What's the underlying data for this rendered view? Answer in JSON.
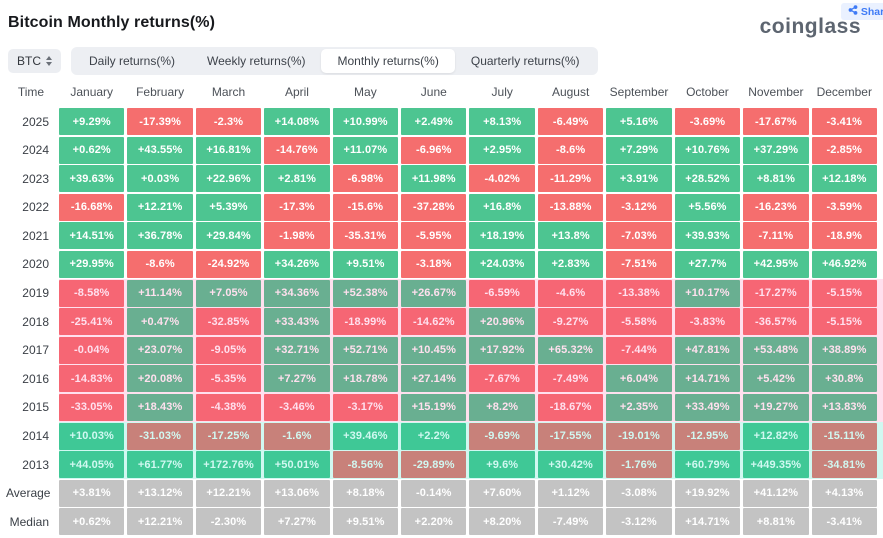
{
  "header": {
    "title": "Bitcoin Monthly returns(%)",
    "share_label": "Share",
    "logo": "coinglass"
  },
  "controls": {
    "symbol": "BTC",
    "tabs": [
      {
        "label": "Daily returns(%)",
        "active": false
      },
      {
        "label": "Weekly returns(%)",
        "active": false
      },
      {
        "label": "Monthly returns(%)",
        "active": true
      },
      {
        "label": "Quarterly returns(%)",
        "active": false
      }
    ]
  },
  "colors": {
    "positive": "#4dc591",
    "negative": "#f56e6e",
    "summary": "#c3c3c3"
  },
  "chart_data": {
    "type": "heatmap",
    "title": "Bitcoin Monthly returns(%)",
    "time_label": "Time",
    "months": [
      "January",
      "February",
      "March",
      "April",
      "May",
      "June",
      "July",
      "August",
      "September",
      "October",
      "November",
      "December"
    ],
    "rows": [
      {
        "label": "2025",
        "band": null,
        "type": "year",
        "values": [
          "+9.29%",
          "-17.39%",
          "-2.3%",
          "+14.08%",
          "+10.99%",
          "+2.49%",
          "+8.13%",
          "-6.49%",
          "+5.16%",
          "-3.69%",
          "-17.67%",
          "-3.41%"
        ]
      },
      {
        "label": "2024",
        "band": null,
        "type": "year",
        "values": [
          "+0.62%",
          "+43.55%",
          "+16.81%",
          "-14.76%",
          "+11.07%",
          "-6.96%",
          "+2.95%",
          "-8.6%",
          "+7.29%",
          "+10.76%",
          "+37.29%",
          "-2.85%"
        ]
      },
      {
        "label": "2023",
        "band": null,
        "type": "year",
        "values": [
          "+39.63%",
          "+0.03%",
          "+22.96%",
          "+2.81%",
          "-6.98%",
          "+11.98%",
          "-4.02%",
          "-11.29%",
          "+3.91%",
          "+28.52%",
          "+8.81%",
          "+12.18%"
        ]
      },
      {
        "label": "2022",
        "band": null,
        "type": "year",
        "values": [
          "-16.68%",
          "+12.21%",
          "+5.39%",
          "-17.3%",
          "-15.6%",
          "-37.28%",
          "+16.8%",
          "-13.88%",
          "-3.12%",
          "+5.56%",
          "-16.23%",
          "-3.59%"
        ]
      },
      {
        "label": "2021",
        "band": null,
        "type": "year",
        "values": [
          "+14.51%",
          "+36.78%",
          "+29.84%",
          "-1.98%",
          "-35.31%",
          "-5.95%",
          "+18.19%",
          "+13.8%",
          "-7.03%",
          "+39.93%",
          "-7.11%",
          "-18.9%"
        ]
      },
      {
        "label": "2020",
        "band": null,
        "type": "year",
        "values": [
          "+29.95%",
          "-8.6%",
          "-24.92%",
          "+34.26%",
          "+9.51%",
          "-3.18%",
          "+24.03%",
          "+2.83%",
          "-7.51%",
          "+27.7%",
          "+42.95%",
          "+46.92%"
        ]
      },
      {
        "label": "2019",
        "band": "pink",
        "type": "year",
        "values": [
          "-8.58%",
          "+11.14%",
          "+7.05%",
          "+34.36%",
          "+52.38%",
          "+26.67%",
          "-6.59%",
          "-4.6%",
          "-13.38%",
          "+10.17%",
          "-17.27%",
          "-5.15%"
        ]
      },
      {
        "label": "2018",
        "band": "pink",
        "type": "year",
        "values": [
          "-25.41%",
          "+0.47%",
          "-32.85%",
          "+33.43%",
          "-18.99%",
          "-14.62%",
          "+20.96%",
          "-9.27%",
          "-5.58%",
          "-3.83%",
          "-36.57%",
          "-5.15%"
        ]
      },
      {
        "label": "2017",
        "band": "pink",
        "type": "year",
        "values": [
          "-0.04%",
          "+23.07%",
          "-9.05%",
          "+32.71%",
          "+52.71%",
          "+10.45%",
          "+17.92%",
          "+65.32%",
          "-7.44%",
          "+47.81%",
          "+53.48%",
          "+38.89%"
        ]
      },
      {
        "label": "2016",
        "band": "pink",
        "type": "year",
        "values": [
          "-14.83%",
          "+20.08%",
          "-5.35%",
          "+7.27%",
          "+18.78%",
          "+27.14%",
          "-7.67%",
          "-7.49%",
          "+6.04%",
          "+14.71%",
          "+5.42%",
          "+30.8%"
        ]
      },
      {
        "label": "2015",
        "band": "pink",
        "type": "year",
        "values": [
          "-33.05%",
          "+18.43%",
          "-4.38%",
          "-3.46%",
          "-3.17%",
          "+15.19%",
          "+8.2%",
          "-18.67%",
          "+2.35%",
          "+33.49%",
          "+19.27%",
          "+13.83%"
        ]
      },
      {
        "label": "2014",
        "band": "cyan",
        "type": "year",
        "values": [
          "+10.03%",
          "-31.03%",
          "-17.25%",
          "-1.6%",
          "+39.46%",
          "+2.2%",
          "-9.69%",
          "-17.55%",
          "-19.01%",
          "-12.95%",
          "+12.82%",
          "-15.11%"
        ]
      },
      {
        "label": "2013",
        "band": "cyan",
        "type": "year",
        "values": [
          "+44.05%",
          "+61.77%",
          "+172.76%",
          "+50.01%",
          "-8.56%",
          "-29.89%",
          "+9.6%",
          "+30.42%",
          "-1.76%",
          "+60.79%",
          "+449.35%",
          "-34.81%"
        ]
      },
      {
        "label": "Average",
        "band": null,
        "type": "summary",
        "values": [
          "+3.81%",
          "+13.12%",
          "+12.21%",
          "+13.06%",
          "+8.18%",
          "-0.14%",
          "+7.60%",
          "+1.12%",
          "-3.08%",
          "+19.92%",
          "+41.12%",
          "+4.13%"
        ]
      },
      {
        "label": "Median",
        "band": null,
        "type": "summary",
        "values": [
          "+0.62%",
          "+12.21%",
          "-2.30%",
          "+7.27%",
          "+9.51%",
          "+2.20%",
          "+8.20%",
          "-7.49%",
          "-3.12%",
          "+14.71%",
          "+8.81%",
          "-3.41%"
        ]
      }
    ]
  }
}
